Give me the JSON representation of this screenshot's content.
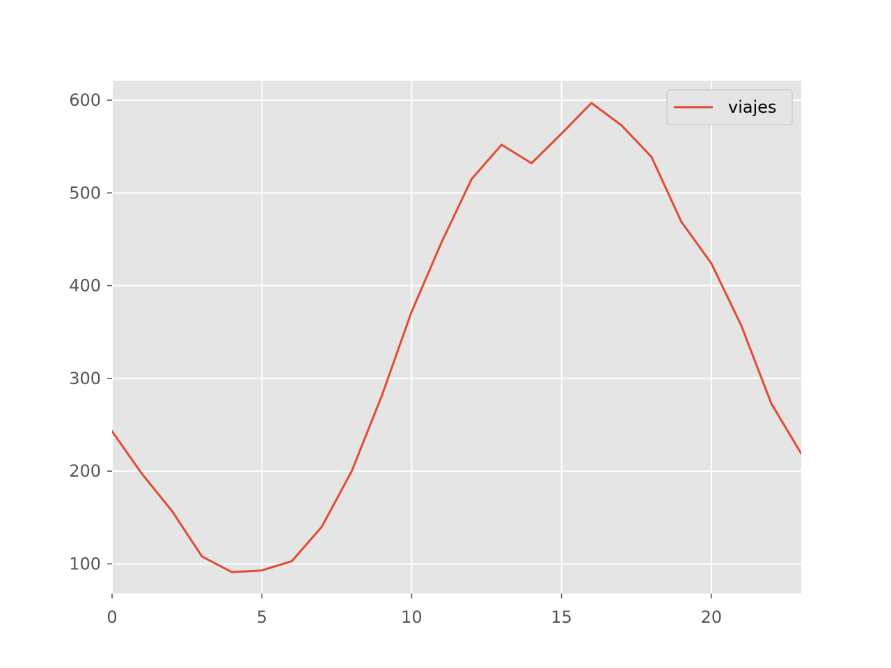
{
  "chart_data": {
    "type": "line",
    "title": "",
    "xlabel": "",
    "ylabel": "",
    "xlim": [
      0,
      23
    ],
    "ylim": [
      68,
      621
    ],
    "grid": true,
    "legend_placement": "top-right",
    "background_color": "#e5e5e5",
    "grid_color": "#ffffff",
    "x_ticks": [
      0,
      5,
      10,
      15,
      20
    ],
    "y_ticks": [
      100,
      200,
      300,
      400,
      500,
      600
    ],
    "x_tick_labels": [
      "0",
      "5",
      "10",
      "15",
      "20"
    ],
    "y_tick_labels": [
      "100",
      "200",
      "300",
      "400",
      "500",
      "600"
    ],
    "series": [
      {
        "name": "viajes",
        "color": "#e24a33",
        "x": [
          0,
          1,
          2,
          3,
          4,
          5,
          6,
          7,
          8,
          9,
          10,
          11,
          12,
          13,
          14,
          15,
          16,
          17,
          18,
          19,
          20,
          21,
          22,
          23
        ],
        "values": [
          243,
          197,
          157,
          108,
          91,
          93,
          103,
          140,
          200,
          281,
          372,
          447,
          515,
          552,
          532,
          564,
          597,
          573,
          539,
          469,
          424,
          357,
          273,
          219
        ]
      }
    ]
  }
}
